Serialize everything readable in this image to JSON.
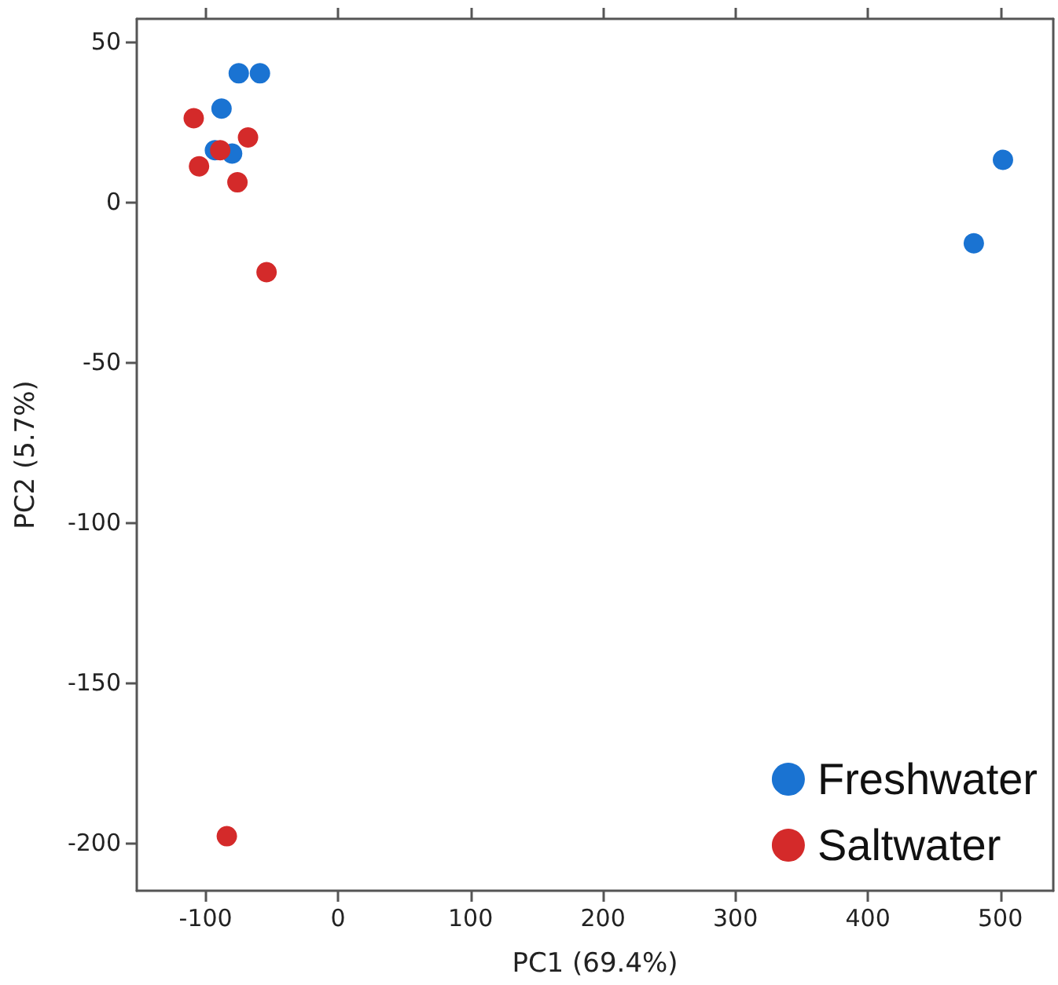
{
  "chart_data": {
    "type": "scatter",
    "xlabel": "PC1 (69.4%)",
    "ylabel": "PC2 (5.7%)",
    "series": [
      {
        "name": "Freshwater",
        "color": "#1a73d2",
        "x": [
          -75,
          -59,
          -88,
          -93,
          -80,
          502,
          480
        ],
        "values": [
          40,
          40,
          29,
          16,
          15,
          13,
          -13
        ]
      },
      {
        "name": "Saltwater",
        "color": "#d42a2a",
        "x": [
          -109,
          -68,
          -89,
          -105,
          -76,
          -54,
          -84
        ],
        "values": [
          26,
          20,
          16,
          11,
          6,
          -22,
          -198
        ]
      }
    ],
    "xlim": [
      -152,
      540
    ],
    "ylim": [
      -215,
      57
    ],
    "xticks": [
      -100,
      0,
      100,
      200,
      300,
      400,
      500
    ],
    "yticks": [
      -200,
      -150,
      -100,
      -50,
      0,
      50
    ],
    "grid": false,
    "legend": "bottom right",
    "marker": "circle"
  }
}
